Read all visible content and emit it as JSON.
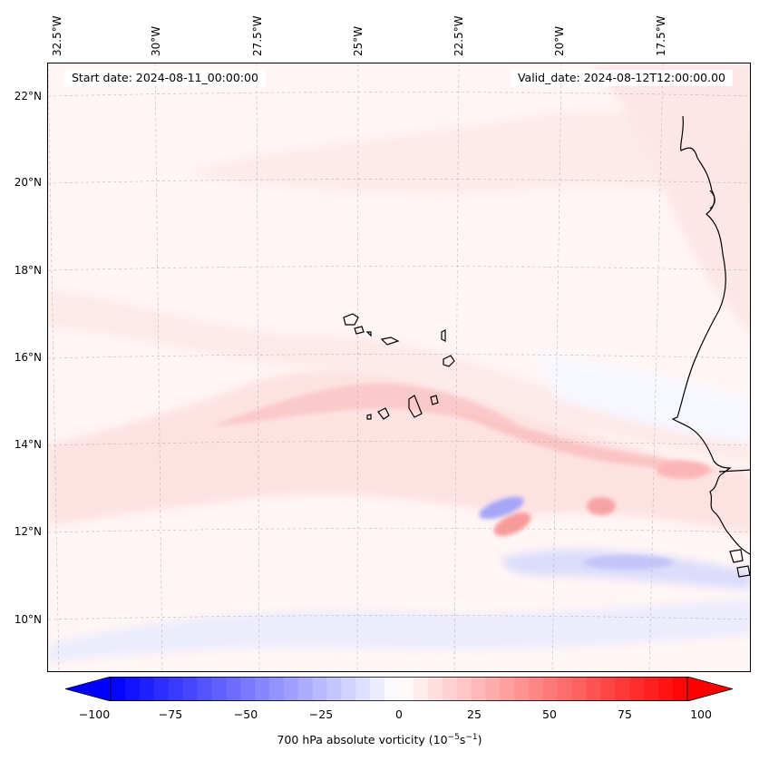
{
  "map": {
    "start_label": "Start date: 2024-08-11_00:00:00",
    "valid_label": "Valid_date: 2024-08-12T12:00:00.00",
    "lon_labels": [
      "32.5°W",
      "30°W",
      "27.5°W",
      "25°W",
      "22.5°W",
      "20°W",
      "17.5°W"
    ],
    "lat_labels": [
      "22°N",
      "20°N",
      "18°N",
      "16°N",
      "14°N",
      "12°N",
      "10°N"
    ],
    "field": "700 hPa absolute vorticity",
    "colors": {
      "neg_max": "#0000ff",
      "pos_max": "#ff0000",
      "mid": "#ffffff",
      "coast": "#000000"
    }
  },
  "colorbar": {
    "label_text": "700 hPa absolute vorticity",
    "label_units": "(10",
    "label_exp1": "−5",
    "label_mid": "s",
    "label_exp2": "−1",
    "label_close": ")",
    "ticks": [
      "−100",
      "−75",
      "−50",
      "−25",
      "0",
      "25",
      "50",
      "75",
      "100"
    ],
    "min": -100,
    "max": 100,
    "levels": 40
  }
}
